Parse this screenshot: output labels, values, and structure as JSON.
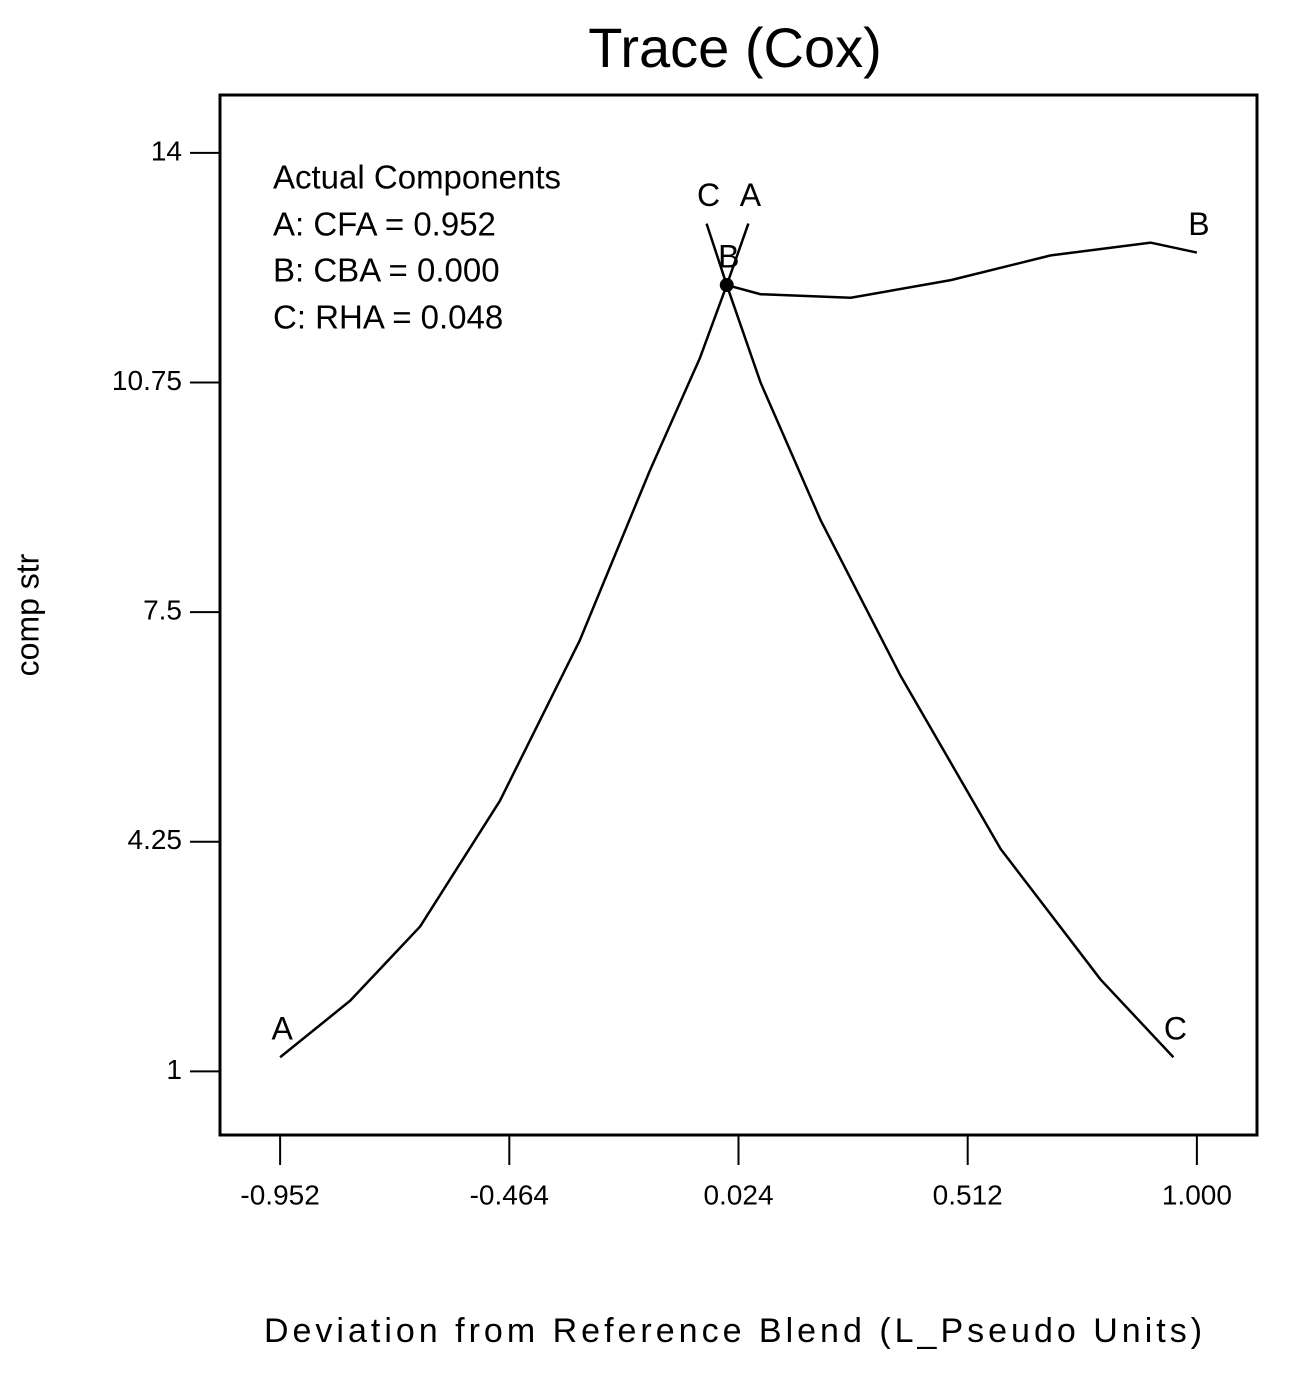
{
  "chart_data": {
    "type": "line",
    "title": "Trace (Cox)",
    "x_label": "Deviation from Reference Blend (L_Pseudo Units)",
    "y_label": "comp str",
    "annotation": [
      "Actual Components",
      "A: CFA = 0.952",
      "B: CBA = 0.000",
      "C: RHA = 0.048"
    ],
    "xlim": [
      -1.08,
      1.128
    ],
    "ylim": [
      0.1,
      14.82
    ],
    "xticks": [
      -0.952,
      -0.464,
      0.024,
      0.512,
      {
        "value": 1,
        "label": "1.000"
      }
    ],
    "yticks": [
      1,
      4.25,
      7.5,
      10.75,
      14
    ],
    "grid": false,
    "series": [
      {
        "name": "A",
        "color": "#000000",
        "x": [
          -0.952,
          -0.803,
          -0.654,
          -0.484,
          -0.314,
          -0.165,
          -0.058,
          -0.001,
          0.045
        ],
        "values": [
          1.2,
          2.0,
          3.05,
          4.83,
          7.1,
          9.5,
          11.1,
          12.13,
          13.0
        ]
      },
      {
        "name": "B",
        "color": "#000000",
        "x": [
          -0.001,
          0.071,
          0.263,
          0.476,
          0.689,
          0.902,
          1.0
        ],
        "values": [
          12.13,
          12.0,
          11.95,
          12.2,
          12.55,
          12.73,
          12.59
        ]
      },
      {
        "name": "C",
        "color": "#000000",
        "x": [
          -0.044,
          -0.001,
          0.071,
          0.199,
          0.369,
          0.582,
          0.795,
          0.95
        ],
        "values": [
          13.0,
          12.13,
          10.75,
          8.8,
          6.6,
          4.15,
          2.3,
          1.2
        ]
      }
    ]
  }
}
